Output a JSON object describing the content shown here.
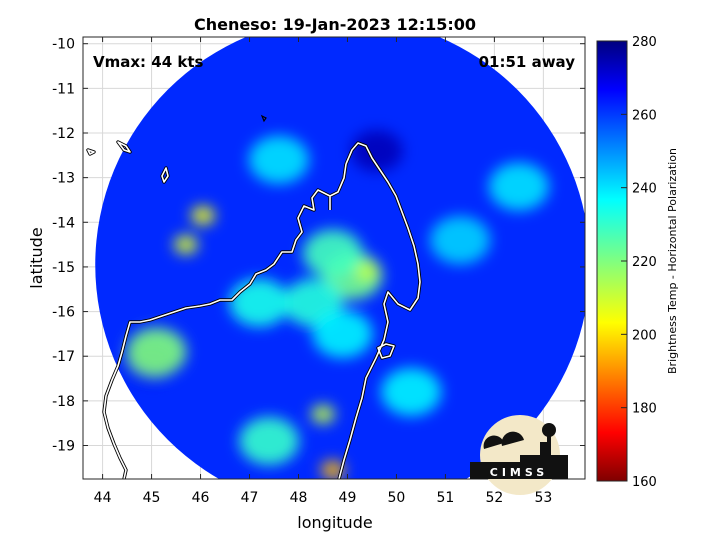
{
  "chart_data": {
    "type": "heatmap",
    "title": "Cheneso: 19-Jan-2023 12:15:00",
    "xlabel": "longitude",
    "ylabel": "latitude",
    "xlim": [
      43.6,
      53.85
    ],
    "ylim": [
      -19.75,
      -9.85
    ],
    "xticks": [
      44,
      45,
      46,
      47,
      48,
      49,
      50,
      51,
      52,
      53
    ],
    "yticks": [
      -10,
      -11,
      -12,
      -13,
      -14,
      -15,
      -16,
      -17,
      -18,
      -19
    ],
    "grid": true,
    "annotations": {
      "vmax": "Vmax: 44 kts",
      "away": "01:51 away"
    },
    "colorbar": {
      "label": "Brightness Temp - Horizontal Polarization",
      "range": [
        160,
        280
      ],
      "ticks": [
        160,
        180,
        200,
        220,
        240,
        260,
        280
      ]
    },
    "swath": {
      "center": [
        48.9,
        -14.95
      ],
      "radius_deg": 5.05,
      "background_value": 262
    },
    "features": [
      {
        "lon": 49.1,
        "lat": -15.2,
        "value": 222
      },
      {
        "lon": 49.4,
        "lat": -15.1,
        "value": 212
      },
      {
        "lon": 48.7,
        "lat": -14.7,
        "value": 228
      },
      {
        "lon": 48.3,
        "lat": -15.8,
        "value": 232
      },
      {
        "lon": 48.9,
        "lat": -16.5,
        "value": 238
      },
      {
        "lon": 46.05,
        "lat": -13.85,
        "value": 205
      },
      {
        "lon": 45.7,
        "lat": -14.5,
        "value": 208
      },
      {
        "lon": 48.5,
        "lat": -18.3,
        "value": 212
      },
      {
        "lon": 48.7,
        "lat": -19.55,
        "value": 195
      },
      {
        "lon": 47.4,
        "lat": -18.9,
        "value": 230
      },
      {
        "lon": 45.0,
        "lat": -17.1,
        "value": 272
      },
      {
        "lon": 45.1,
        "lat": -16.9,
        "value": 220
      },
      {
        "lon": 49.6,
        "lat": -12.4,
        "value": 274
      },
      {
        "lon": 47.2,
        "lat": -15.8,
        "value": 234
      },
      {
        "lon": 47.6,
        "lat": -12.6,
        "value": 240
      },
      {
        "lon": 51.3,
        "lat": -14.4,
        "value": 242
      },
      {
        "lon": 52.5,
        "lat": -13.2,
        "value": 240
      },
      {
        "lon": 50.3,
        "lat": -17.8,
        "value": 238
      }
    ]
  },
  "logo": {
    "text": "CIMSS"
  }
}
